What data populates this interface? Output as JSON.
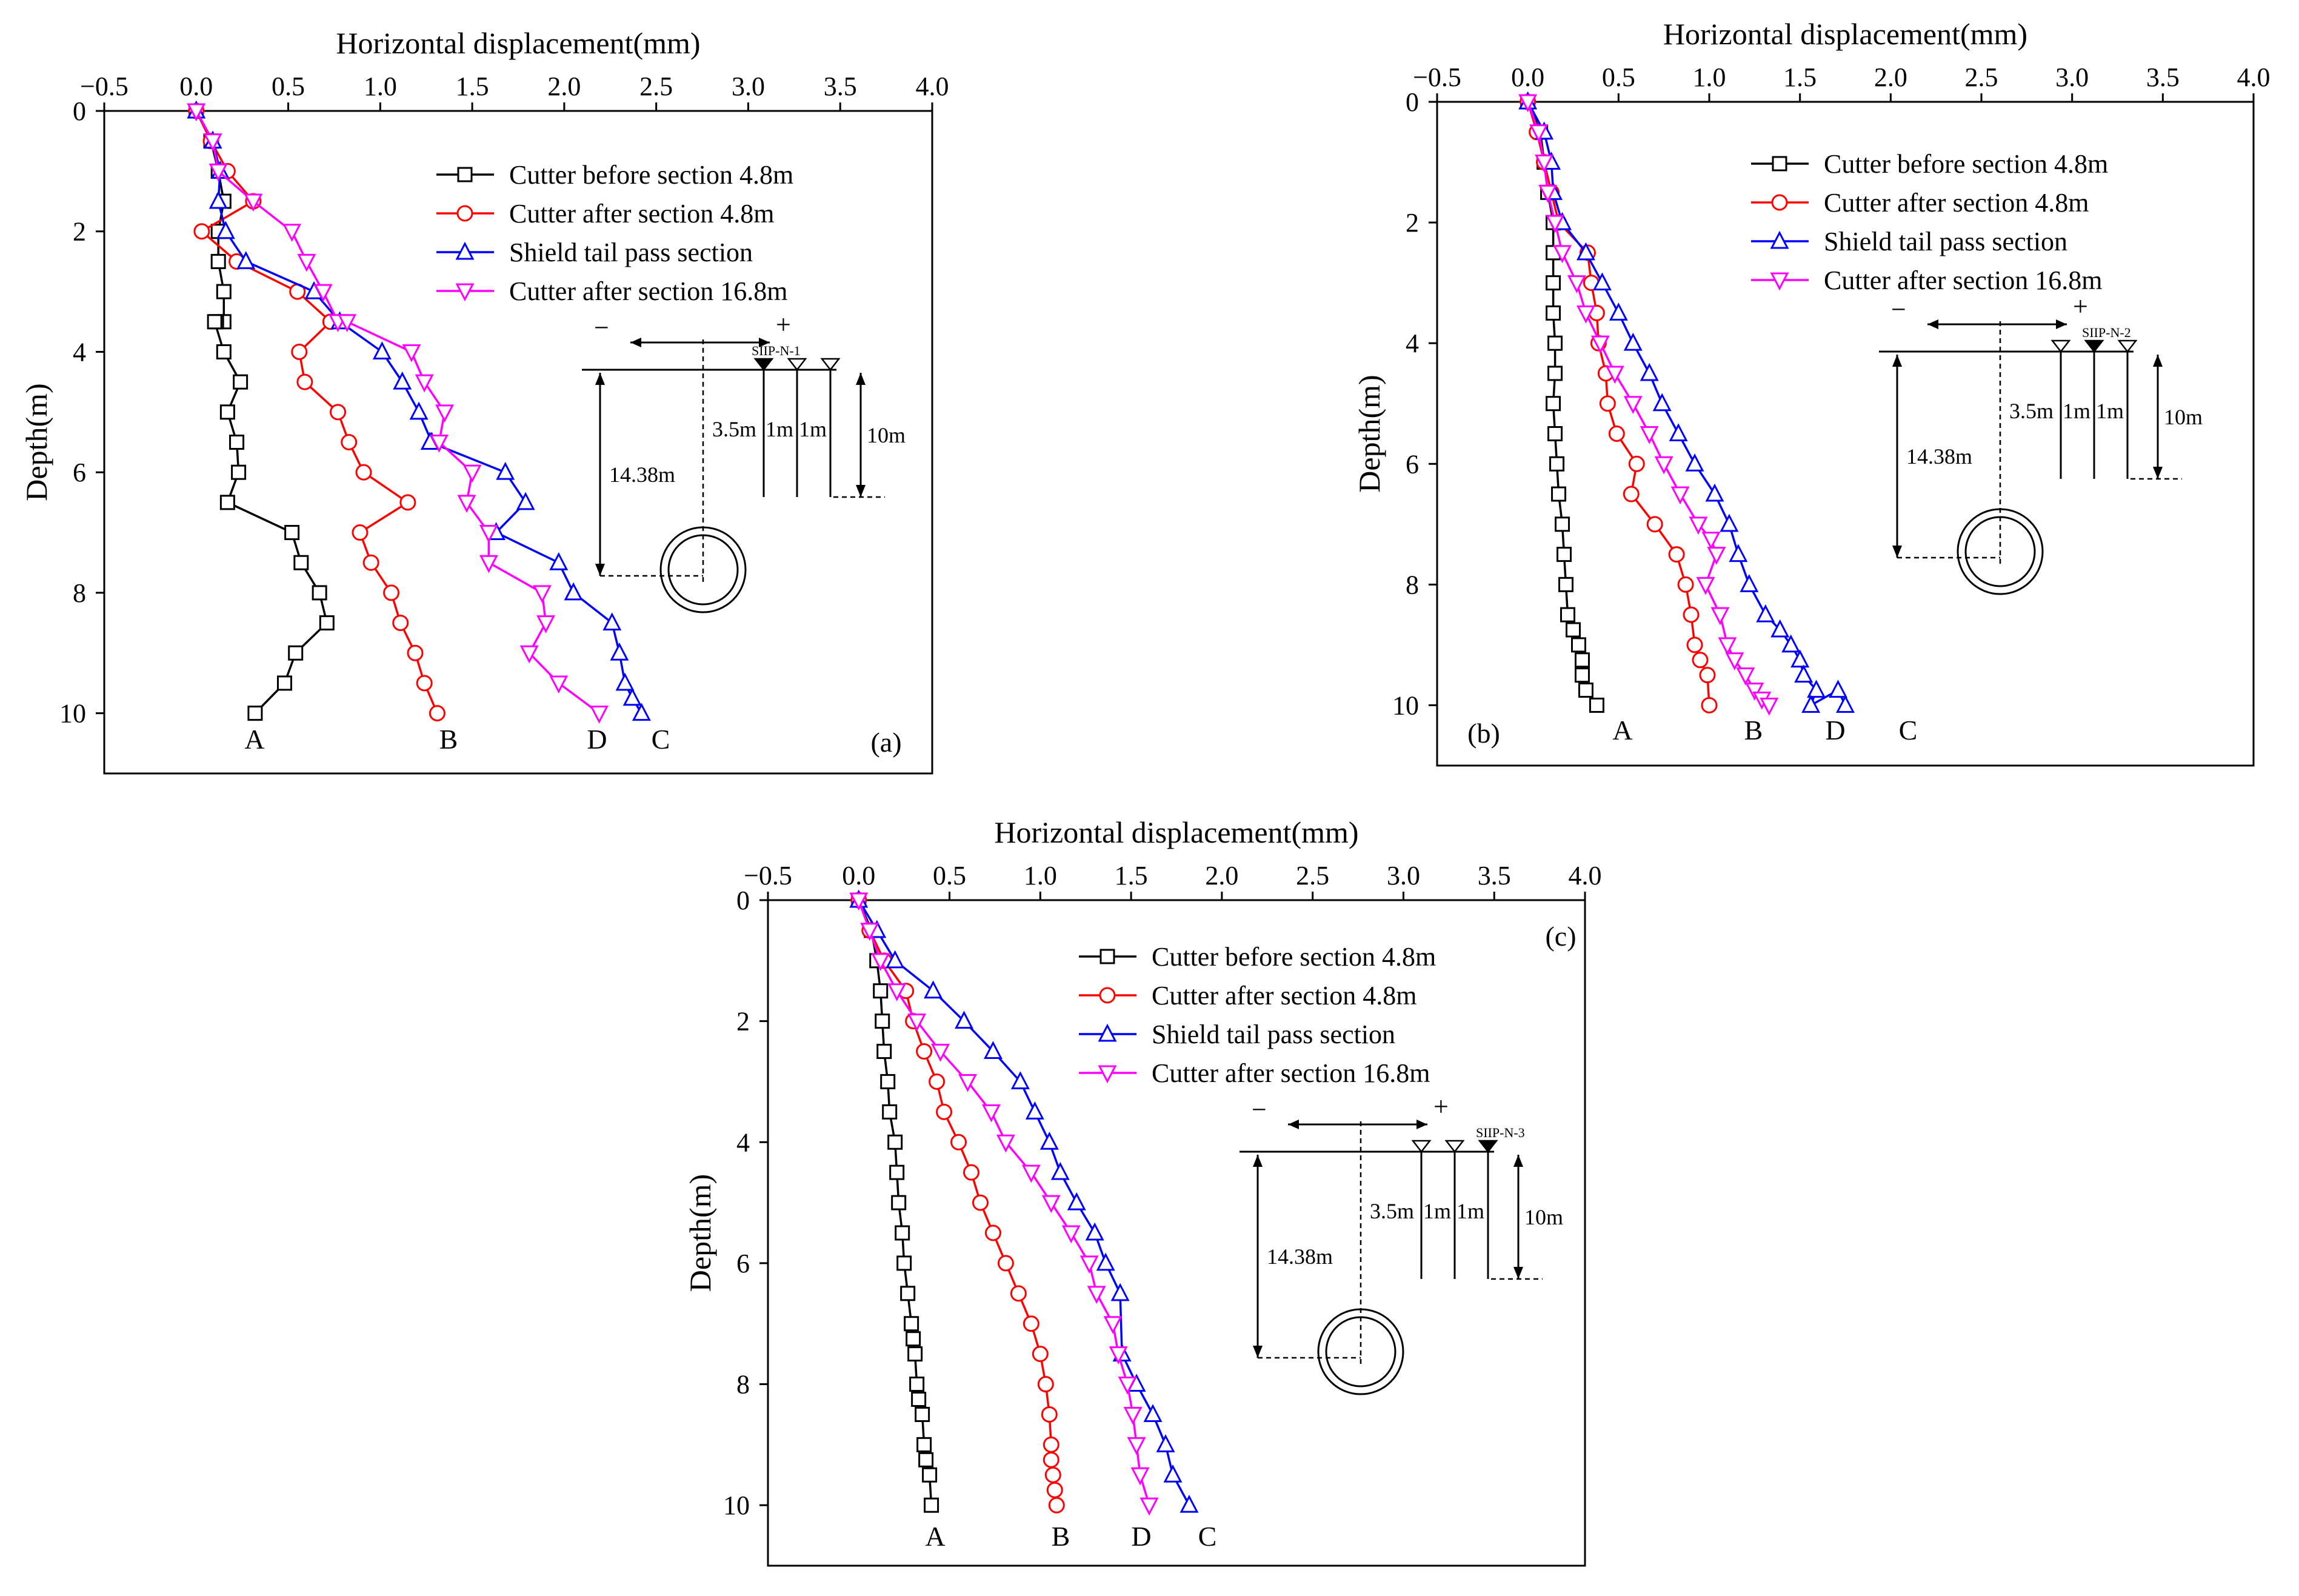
{
  "colors": {
    "A": "#000000",
    "B": "#ff0000",
    "C": "#0000ff",
    "D": "#ff00ff"
  },
  "marker_shapes": {
    "A": "square",
    "B": "circle",
    "C": "triangle-up",
    "D": "triangle-down"
  },
  "chart_data": [
    {
      "id": "a",
      "type": "line",
      "panel_label": "(a)",
      "xlabel": "Horizontal displacement(mm)",
      "ylabel": "Depth(m)",
      "xlim": [
        -0.5,
        4.0
      ],
      "ylim": [
        0,
        11
      ],
      "xticks": [
        -0.5,
        0.0,
        0.5,
        1.0,
        1.5,
        2.0,
        2.5,
        3.0,
        3.5,
        4.0
      ],
      "xtick_labels": [
        "−0.5",
        "0.0",
        "0.5",
        "1.0",
        "1.5",
        "2.0",
        "2.5",
        "3.0",
        "3.5",
        "4.0"
      ],
      "yticks": [
        0,
        2,
        4,
        6,
        8,
        10
      ],
      "ytick_labels": [
        "0",
        "2",
        "4",
        "6",
        "8",
        "10"
      ],
      "legend": [
        "Cutter before section 4.8m",
        "Cutter after section 4.8m",
        "Shield tail pass section",
        "Cutter after section 16.8m"
      ],
      "series": [
        {
          "key": "A",
          "name": "Cutter before section 4.8m",
          "label": "A",
          "x": [
            0.0,
            0.08,
            0.12,
            0.15,
            0.12,
            0.12,
            0.15,
            0.15,
            0.11,
            0.1,
            0.15,
            0.24,
            0.17,
            0.22,
            0.23,
            0.17,
            0.52,
            0.57,
            0.67,
            0.71,
            0.54,
            0.48,
            0.32
          ],
          "y": [
            0,
            0.5,
            1.0,
            1.5,
            2.0,
            2.5,
            3.0,
            3.5,
            3.5,
            3.5,
            4.0,
            4.5,
            5.0,
            5.5,
            6.0,
            6.5,
            7.0,
            7.5,
            8.0,
            8.5,
            9.0,
            9.5,
            10.0
          ]
        },
        {
          "key": "B",
          "name": "Cutter after section 4.8m",
          "label": "B",
          "x": [
            0.0,
            0.08,
            0.17,
            0.31,
            0.03,
            0.22,
            0.55,
            0.73,
            0.56,
            0.59,
            0.77,
            0.83,
            0.91,
            1.15,
            0.89,
            0.95,
            1.06,
            1.11,
            1.19,
            1.24,
            1.31
          ],
          "y": [
            0,
            0.5,
            1.0,
            1.5,
            2.0,
            2.5,
            3.0,
            3.5,
            4.0,
            4.5,
            5.0,
            5.5,
            6.0,
            6.5,
            7.0,
            7.5,
            8.0,
            8.5,
            9.0,
            9.5,
            10.0
          ]
        },
        {
          "key": "C",
          "name": "Shield tail pass section",
          "label": "C",
          "x": [
            0.0,
            0.09,
            0.13,
            0.12,
            0.16,
            0.27,
            0.64,
            0.78,
            1.01,
            1.12,
            1.21,
            1.28,
            1.27,
            1.68,
            1.79,
            1.63,
            1.97,
            2.05,
            2.26,
            2.3,
            2.33,
            2.37,
            2.42
          ],
          "y": [
            0,
            0.5,
            1.0,
            1.5,
            2.0,
            2.5,
            3.0,
            3.5,
            4.0,
            4.5,
            5.0,
            5.5,
            5.5,
            6.0,
            6.5,
            7.0,
            7.5,
            8.0,
            8.5,
            9.0,
            9.5,
            9.75,
            10.0
          ]
        },
        {
          "key": "D",
          "name": "Cutter after section 16.8m",
          "label": "D",
          "x": [
            0.0,
            0.09,
            0.12,
            0.31,
            0.52,
            0.6,
            0.69,
            0.77,
            0.82,
            1.17,
            1.24,
            1.35,
            1.32,
            1.5,
            1.47,
            1.59,
            1.59,
            1.88,
            1.9,
            1.81,
            1.97,
            2.19
          ],
          "y": [
            0,
            0.5,
            1.0,
            1.5,
            2.0,
            2.5,
            3.0,
            3.5,
            3.5,
            4.0,
            4.5,
            5.0,
            5.5,
            6.0,
            6.5,
            7.0,
            7.5,
            8.0,
            8.5,
            9.0,
            9.5,
            10.0
          ]
        }
      ],
      "diagram": {
        "pipe_label": "SIIP-N-1",
        "filled_pipe_index": 0,
        "labels": {
          "depth_total": "14.38m",
          "offset": "3.5m",
          "gap1": "1m",
          "gap2": "1m",
          "pipe_depth": "10m",
          "minus": "−",
          "plus": "+"
        }
      }
    },
    {
      "id": "b",
      "type": "line",
      "panel_label": "(b)",
      "xlabel": "Horizontal displacement(mm)",
      "ylabel": "Depth(m)",
      "xlim": [
        -0.5,
        4.0
      ],
      "ylim": [
        0,
        11
      ],
      "xticks": [
        -0.5,
        0.0,
        0.5,
        1.0,
        1.5,
        2.0,
        2.5,
        3.0,
        3.5,
        4.0
      ],
      "xtick_labels": [
        "−0.5",
        "0.0",
        "0.5",
        "1.0",
        "1.5",
        "2.0",
        "2.5",
        "3.0",
        "3.5",
        "4.0"
      ],
      "yticks": [
        0,
        2,
        4,
        6,
        8,
        10
      ],
      "ytick_labels": [
        "0",
        "2",
        "4",
        "6",
        "8",
        "10"
      ],
      "legend": [
        "Cutter before section 4.8m",
        "Cutter after section 4.8m",
        "Shield tail pass section",
        "Cutter after section 16.8m"
      ],
      "series": [
        {
          "key": "A",
          "name": "Cutter before section 4.8m",
          "label": "A",
          "x": [
            0.0,
            0.07,
            0.09,
            0.11,
            0.14,
            0.14,
            0.14,
            0.14,
            0.15,
            0.15,
            0.14,
            0.15,
            0.16,
            0.17,
            0.19,
            0.2,
            0.21,
            0.22,
            0.25,
            0.28,
            0.3,
            0.3,
            0.32,
            0.38
          ],
          "y": [
            0,
            0.5,
            1.0,
            1.5,
            2.0,
            2.5,
            3.0,
            3.5,
            4.0,
            4.5,
            5.0,
            5.5,
            6.0,
            6.5,
            7.0,
            7.5,
            8.0,
            8.5,
            8.75,
            9.0,
            9.25,
            9.5,
            9.75,
            10.0
          ]
        },
        {
          "key": "B",
          "name": "Cutter after section 4.8m",
          "label": "B",
          "x": [
            0.0,
            0.05,
            0.09,
            0.13,
            0.17,
            0.33,
            0.35,
            0.38,
            0.39,
            0.43,
            0.44,
            0.49,
            0.6,
            0.57,
            0.7,
            0.82,
            0.87,
            0.9,
            0.92,
            0.95,
            0.99,
            1.0
          ],
          "y": [
            0,
            0.5,
            1.0,
            1.5,
            2.0,
            2.5,
            3.0,
            3.5,
            4.0,
            4.5,
            5.0,
            5.5,
            6.0,
            6.5,
            7.0,
            7.5,
            8.0,
            8.5,
            9.0,
            9.25,
            9.5,
            10.0
          ]
        },
        {
          "key": "C",
          "name": "Shield tail pass section",
          "label": "C",
          "x": [
            0.0,
            0.09,
            0.13,
            0.14,
            0.19,
            0.32,
            0.41,
            0.5,
            0.58,
            0.67,
            0.74,
            0.83,
            0.92,
            1.03,
            1.11,
            1.16,
            1.22,
            1.31,
            1.39,
            1.45,
            1.5,
            1.52,
            1.59,
            1.56,
            1.71,
            1.75
          ],
          "y": [
            0,
            0.5,
            1.0,
            1.5,
            2.0,
            2.5,
            3.0,
            3.5,
            4.0,
            4.5,
            5.0,
            5.5,
            6.0,
            6.5,
            7.0,
            7.5,
            8.0,
            8.5,
            8.75,
            9.0,
            9.25,
            9.5,
            9.75,
            10.0,
            9.75,
            10.0
          ]
        },
        {
          "key": "D",
          "name": "Cutter after section 16.8m",
          "label": "D",
          "x": [
            0.0,
            0.06,
            0.09,
            0.11,
            0.15,
            0.19,
            0.27,
            0.32,
            0.4,
            0.48,
            0.58,
            0.67,
            0.75,
            0.84,
            0.94,
            1.01,
            1.04,
            0.98,
            1.06,
            1.1,
            1.14,
            1.2,
            1.25,
            1.29,
            1.33
          ],
          "y": [
            0,
            0.5,
            1.0,
            1.5,
            2.0,
            2.5,
            3.0,
            3.5,
            4.0,
            4.5,
            5.0,
            5.5,
            6.0,
            6.5,
            7.0,
            7.25,
            7.5,
            8.0,
            8.5,
            9.0,
            9.25,
            9.5,
            9.75,
            9.9,
            10.0
          ]
        }
      ],
      "diagram": {
        "pipe_label": "SIIP-N-2",
        "filled_pipe_index": 1,
        "labels": {
          "depth_total": "14.38m",
          "offset": "3.5m",
          "gap1": "1m",
          "gap2": "1m",
          "pipe_depth": "10m",
          "minus": "−",
          "plus": "+"
        }
      }
    },
    {
      "id": "c",
      "type": "line",
      "panel_label": "(c)",
      "xlabel": "Horizontal displacement(mm)",
      "ylabel": "Depth(m)",
      "xlim": [
        -0.5,
        4.0
      ],
      "ylim": [
        0,
        11
      ],
      "xticks": [
        -0.5,
        0.0,
        0.5,
        1.0,
        1.5,
        2.0,
        2.5,
        3.0,
        3.5,
        4.0
      ],
      "xtick_labels": [
        "−0.5",
        "0.0",
        "0.5",
        "1.0",
        "1.5",
        "2.0",
        "2.5",
        "3.0",
        "3.5",
        "4.0"
      ],
      "yticks": [
        0,
        2,
        4,
        6,
        8,
        10
      ],
      "ytick_labels": [
        "0",
        "2",
        "4",
        "6",
        "8",
        "10"
      ],
      "legend": [
        "Cutter before section 4.8m",
        "Cutter after section 4.8m",
        "Shield tail pass section",
        "Cutter after section 16.8m"
      ],
      "series": [
        {
          "key": "A",
          "name": "Cutter before section 4.8m",
          "label": "A",
          "x": [
            0.0,
            0.07,
            0.1,
            0.12,
            0.13,
            0.14,
            0.16,
            0.17,
            0.2,
            0.21,
            0.22,
            0.24,
            0.25,
            0.27,
            0.29,
            0.3,
            0.31,
            0.32,
            0.33,
            0.35,
            0.36,
            0.37,
            0.39,
            0.4
          ],
          "y": [
            0,
            0.5,
            1.0,
            1.5,
            2.0,
            2.5,
            3.0,
            3.5,
            4.0,
            4.5,
            5.0,
            5.5,
            6.0,
            6.5,
            7.0,
            7.25,
            7.5,
            8.0,
            8.25,
            8.5,
            9.0,
            9.25,
            9.5,
            10.0
          ]
        },
        {
          "key": "B",
          "name": "Cutter after section 4.8m",
          "label": "B",
          "x": [
            0.0,
            0.06,
            0.14,
            0.26,
            0.3,
            0.36,
            0.43,
            0.47,
            0.55,
            0.62,
            0.67,
            0.74,
            0.81,
            0.88,
            0.95,
            1.0,
            1.03,
            1.05,
            1.06,
            1.06,
            1.07,
            1.08,
            1.09
          ],
          "y": [
            0,
            0.5,
            1.0,
            1.5,
            2.0,
            2.5,
            3.0,
            3.5,
            4.0,
            4.5,
            5.0,
            5.5,
            6.0,
            6.5,
            7.0,
            7.5,
            8.0,
            8.5,
            9.0,
            9.25,
            9.5,
            9.75,
            10.0
          ]
        },
        {
          "key": "C",
          "name": "Shield tail pass section",
          "label": "C",
          "x": [
            0.0,
            0.1,
            0.2,
            0.41,
            0.58,
            0.74,
            0.89,
            0.97,
            1.05,
            1.11,
            1.2,
            1.3,
            1.36,
            1.44,
            1.45,
            1.53,
            1.62,
            1.69,
            1.73,
            1.82
          ],
          "y": [
            0,
            0.5,
            1.0,
            1.5,
            2.0,
            2.5,
            3.0,
            3.5,
            4.0,
            4.5,
            5.0,
            5.5,
            6.0,
            6.5,
            7.5,
            8.0,
            8.5,
            9.0,
            9.5,
            10.0
          ]
        },
        {
          "key": "D",
          "name": "Cutter after section 16.8m",
          "label": "D",
          "x": [
            0.0,
            0.06,
            0.12,
            0.21,
            0.32,
            0.45,
            0.6,
            0.73,
            0.81,
            0.95,
            1.06,
            1.17,
            1.27,
            1.31,
            1.4,
            1.43,
            1.48,
            1.51,
            1.53,
            1.55,
            1.6
          ],
          "y": [
            0,
            0.5,
            1.0,
            1.5,
            2.0,
            2.5,
            3.0,
            3.5,
            4.0,
            4.5,
            5.0,
            5.5,
            6.0,
            6.5,
            7.0,
            7.5,
            8.0,
            8.5,
            9.0,
            9.5,
            10.0
          ]
        }
      ],
      "diagram": {
        "pipe_label": "SIIP-N-3",
        "filled_pipe_index": 2,
        "labels": {
          "depth_total": "14.38m",
          "offset": "3.5m",
          "gap1": "1m",
          "gap2": "1m",
          "pipe_depth": "10m",
          "minus": "−",
          "plus": "+"
        }
      }
    }
  ]
}
